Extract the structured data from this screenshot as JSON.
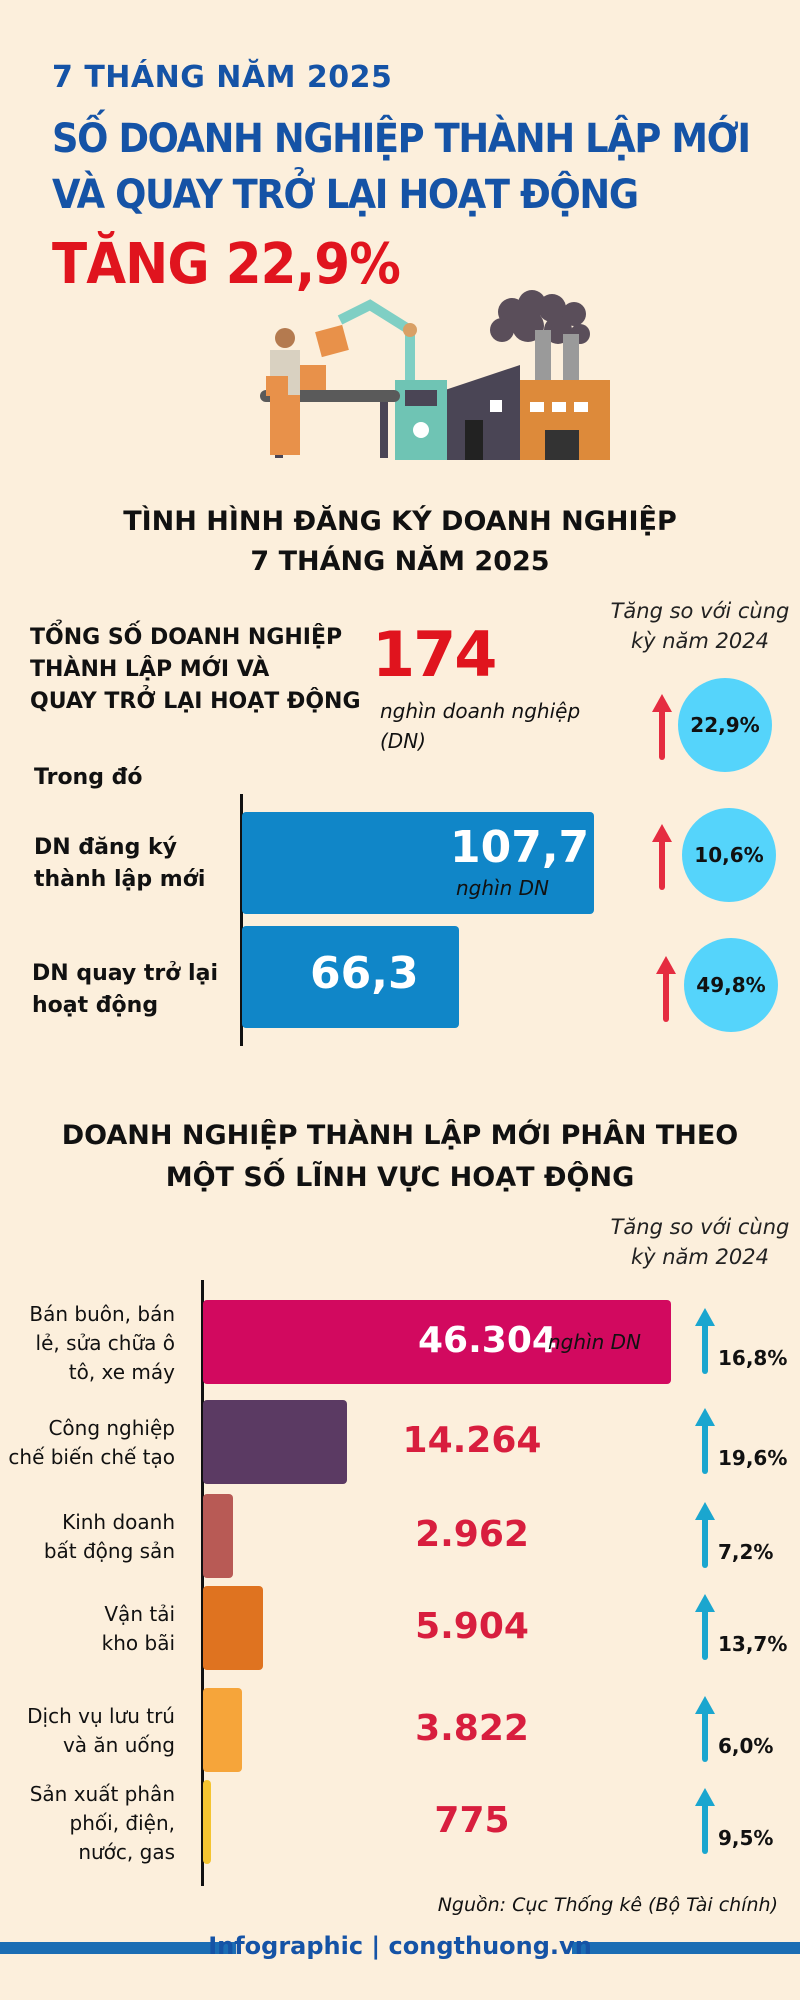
{
  "header": {
    "period": "7 THÁNG NĂM 2025",
    "title_line1": "SỐ DOANH NGHIỆP THÀNH LẬP MỚI",
    "title_line2": "VÀ QUAY TRỞ LẠI HOẠT ĐỘNG",
    "headline": "TĂNG 22,9%"
  },
  "section1": {
    "title_line1": "TÌNH HÌNH ĐĂNG KÝ DOANH NGHIỆP",
    "title_line2": "7 THÁNG NĂM 2025",
    "compare_note_line1": "Tăng so với cùng",
    "compare_note_line2": "kỳ năm 2024",
    "total_label_line1": "TỔNG SỐ DOANH NGHIỆP",
    "total_label_line2": "THÀNH LẬP MỚI VÀ",
    "total_label_line3": "QUAY TRỞ LẠI HOẠT ĐỘNG",
    "total_value": "174",
    "total_unit_line1": "nghìn doanh nghiệp",
    "total_unit_line2": "(DN)",
    "total_growth": "22,9%",
    "of_which": "Trong đó",
    "new_label_line1": "DN đăng ký",
    "new_label_line2": "thành lập mới",
    "new_value": "107,7",
    "new_unit": "nghìn DN",
    "new_growth": "10,6%",
    "return_label_line1": "DN quay trở lại",
    "return_label_line2": "hoạt động",
    "return_value": "66,3",
    "return_growth": "49,8%"
  },
  "section2": {
    "title_line1": "DOANH NGHIỆP THÀNH LẬP MỚI PHÂN THEO",
    "title_line2": "MỘT SỐ LĨNH VỰC HOẠT ĐỘNG",
    "compare_note_line1": "Tăng so với cùng",
    "compare_note_line2": "kỳ năm 2024",
    "unit": "nghìn DN"
  },
  "chart_data": [
    {
      "type": "bar",
      "title": "TÌNH HÌNH ĐĂNG KÝ DOANH NGHIỆP 7 THÁNG NĂM 2025",
      "categories": [
        "DN đăng ký thành lập mới",
        "DN quay trở lại hoạt động"
      ],
      "values": [
        107.7,
        66.3
      ],
      "growth_pct": [
        10.6,
        49.8
      ],
      "unit": "nghìn DN",
      "orientation": "horizontal"
    },
    {
      "type": "bar",
      "title": "DOANH NGHIỆP THÀNH LẬP MỚI PHÂN THEO MỘT SỐ LĨNH VỰC HOẠT ĐỘNG",
      "categories": [
        "Bán buôn, bán lẻ, sửa chữa ô tô, xe máy",
        "Công nghiệp chế biến chế tạo",
        "Kinh doanh bất động sản",
        "Vận tải kho bãi",
        "Dịch vụ lưu trú và ăn uống",
        "Sản xuất phân phối, điện, nước, gas"
      ],
      "values": [
        46304,
        14264,
        2962,
        5904,
        3822,
        775
      ],
      "value_labels": [
        "46.304",
        "14.264",
        "2.962",
        "5.904",
        "3.822",
        "775"
      ],
      "growth_labels": [
        "16,8%",
        "19,6%",
        "7,2%",
        "13,7%",
        "6,0%",
        "9,5%"
      ],
      "colors": [
        "#d2095f",
        "#5b3a63",
        "#b85a55",
        "#df7320",
        "#f6a53a",
        "#f4c430"
      ],
      "orientation": "horizontal"
    }
  ],
  "footer": {
    "source": "Nguồn: Cục Thống kê (Bộ Tài chính)",
    "brand": "Infographic | congthuong.vn"
  }
}
